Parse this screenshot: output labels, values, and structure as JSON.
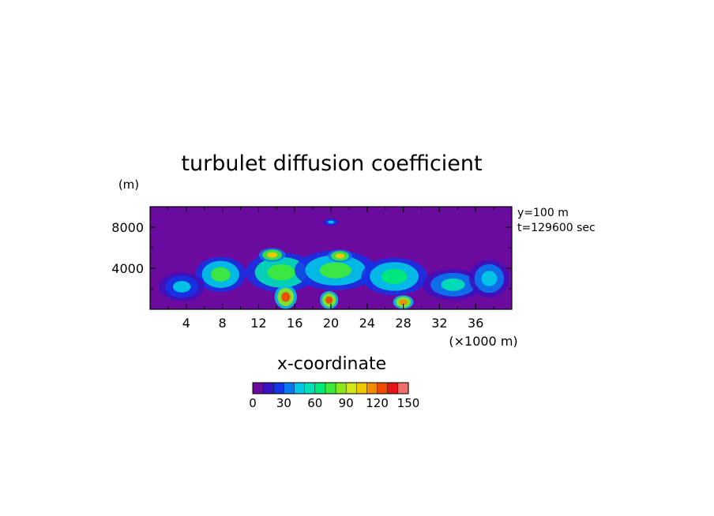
{
  "chart_data": {
    "type": "heatmap",
    "title": "turbulet diffusion coefficient",
    "xlabel": "x-coordinate",
    "x_unit": "(×1000 m)",
    "y_unit": "(m)",
    "annotations": [
      "y=100 m",
      "t=129600 sec"
    ],
    "xlim": [
      0,
      40
    ],
    "ylim": [
      0,
      10000
    ],
    "x_ticks": [
      4,
      8,
      12,
      16,
      20,
      24,
      28,
      32,
      36
    ],
    "y_ticks": [
      4000,
      8000
    ],
    "colorbar": {
      "range": [
        0,
        150
      ],
      "tick_values": [
        0,
        30,
        60,
        90,
        120,
        150
      ],
      "colors": [
        "#6a0a9e",
        "#3a12c0",
        "#1434e6",
        "#0a78f0",
        "#00c8e6",
        "#00e0b4",
        "#00e878",
        "#3ce83c",
        "#8ce61e",
        "#d2e614",
        "#f0c800",
        "#f08c00",
        "#f04a00",
        "#e61414",
        "#f06e6e"
      ]
    },
    "plumes": [
      {
        "x": 7.8,
        "z": 3400,
        "w": 4.5,
        "h": 2800,
        "v": 70
      },
      {
        "x": 14.5,
        "z": 3600,
        "w": 6.5,
        "h": 3200,
        "v": 72
      },
      {
        "x": 20.5,
        "z": 3800,
        "w": 7.5,
        "h": 3200,
        "v": 70
      },
      {
        "x": 27.0,
        "z": 3200,
        "w": 6.0,
        "h": 3000,
        "v": 66
      },
      {
        "x": 33.5,
        "z": 2400,
        "w": 5.5,
        "h": 2400,
        "v": 52
      },
      {
        "x": 37.5,
        "z": 3000,
        "w": 3.5,
        "h": 3000,
        "v": 45
      },
      {
        "x": 3.5,
        "z": 2200,
        "w": 4.0,
        "h": 2200,
        "v": 40
      },
      {
        "x": 15.0,
        "z": 1200,
        "w": 1.8,
        "h": 1800,
        "v": 125
      },
      {
        "x": 19.8,
        "z": 900,
        "w": 1.4,
        "h": 1300,
        "v": 120
      },
      {
        "x": 28.0,
        "z": 700,
        "w": 1.6,
        "h": 900,
        "v": 118
      },
      {
        "x": 13.5,
        "z": 5300,
        "w": 2.2,
        "h": 900,
        "v": 105
      },
      {
        "x": 21.0,
        "z": 5200,
        "w": 2.0,
        "h": 800,
        "v": 100
      },
      {
        "x": 20.0,
        "z": 8500,
        "w": 1.2,
        "h": 350,
        "v": 40
      }
    ]
  }
}
